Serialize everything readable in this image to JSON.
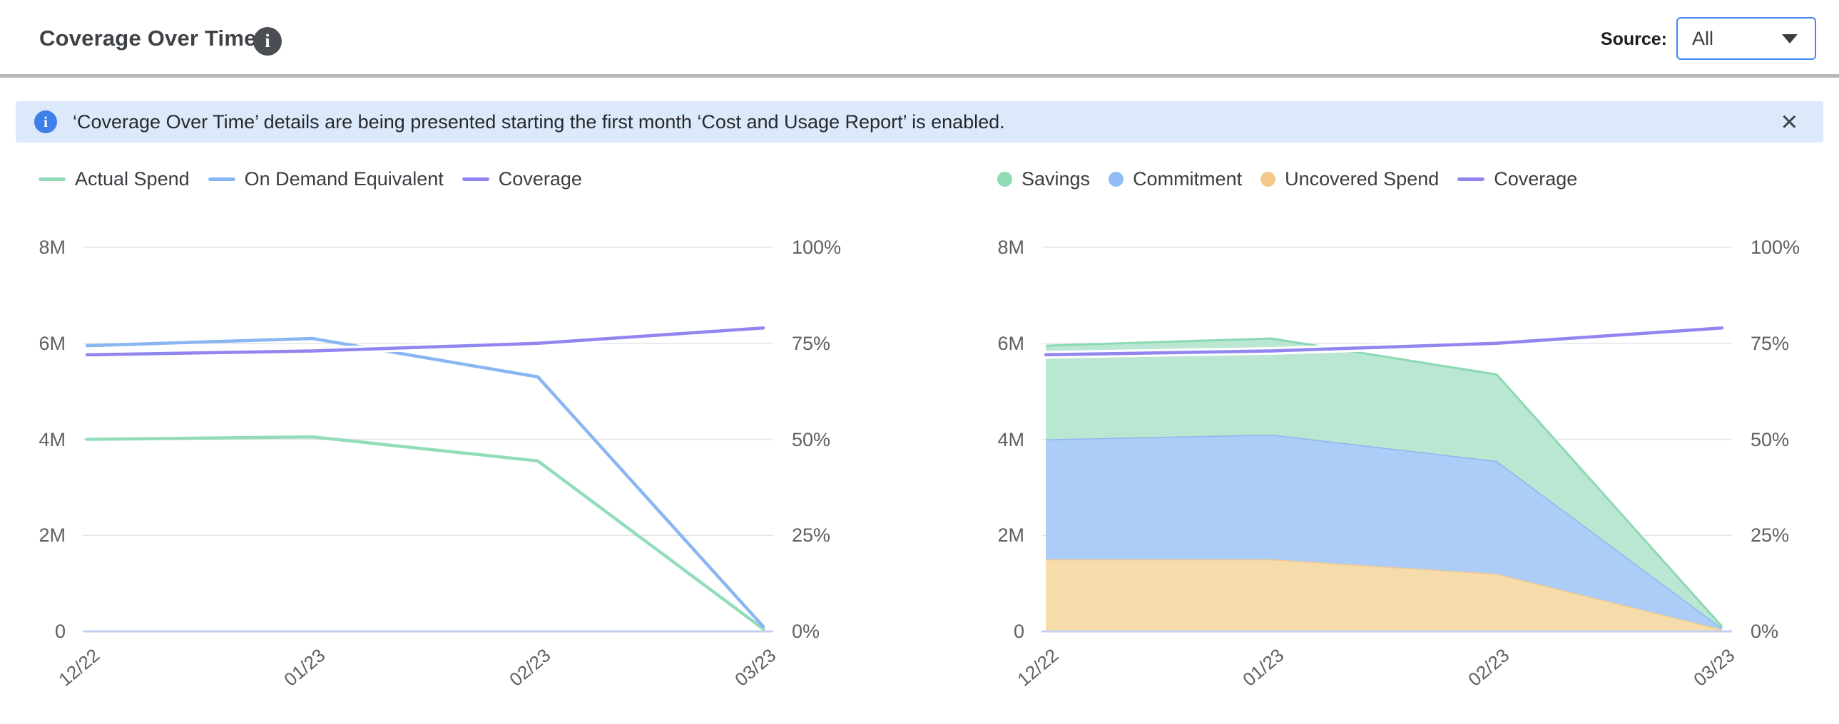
{
  "header": {
    "title": "Coverage Over Time",
    "info_icon": "i",
    "source_label": "Source:",
    "source_value": "All"
  },
  "banner": {
    "info_icon": "i",
    "text": "‘Coverage Over Time’ details are being presented starting the first month ‘Cost and Usage Report’ is enabled.",
    "close_icon": "×"
  },
  "colors": {
    "accent_blue": "#4387f6",
    "banner_bg": "#dce9fb",
    "banner_icon_blue": "#3e7fe9",
    "gridline": "#e5e5e7",
    "axis_line": "#c5cff2",
    "axis_text": "#5d6065",
    "green": "#93dcba",
    "blue": "#89b6f2",
    "purple": "#9186f0",
    "orange": "#f2c987"
  },
  "chart_data": [
    {
      "id": "spend-coverage-line-chart",
      "type": "line",
      "categories": [
        "12/22",
        "01/23",
        "02/23",
        "03/23"
      ],
      "left_axis": {
        "range": [
          0,
          8000000
        ],
        "ticks": [
          {
            "value": 0,
            "label": "0"
          },
          {
            "value": 2000000,
            "label": "2M"
          },
          {
            "value": 4000000,
            "label": "4M"
          },
          {
            "value": 6000000,
            "label": "6M"
          },
          {
            "value": 8000000,
            "label": "8M"
          }
        ]
      },
      "right_axis": {
        "range": [
          0,
          100
        ],
        "ticks": [
          {
            "value": 0,
            "label": "0%"
          },
          {
            "value": 25,
            "label": "25%"
          },
          {
            "value": 50,
            "label": "50%"
          },
          {
            "value": 75,
            "label": "75%"
          },
          {
            "value": 100,
            "label": "100%"
          }
        ]
      },
      "series": [
        {
          "name": "Actual Spend",
          "axis": "left",
          "color": "#93dcba",
          "values": [
            4000000,
            4050000,
            3550000,
            50000
          ]
        },
        {
          "name": "On Demand Equivalent",
          "axis": "left",
          "color": "#89b6f2",
          "values": [
            5950000,
            6100000,
            5300000,
            100000
          ]
        },
        {
          "name": "Coverage",
          "axis": "right",
          "color": "#9186f0",
          "halo": true,
          "values": [
            72,
            73,
            75,
            79
          ]
        }
      ],
      "legend": [
        {
          "label": "Actual Spend",
          "swatch": "line",
          "color": "#93dcba"
        },
        {
          "label": "On Demand Equivalent",
          "swatch": "line",
          "color": "#89b6f2"
        },
        {
          "label": "Coverage",
          "swatch": "line",
          "color": "#9186f0"
        }
      ],
      "grid": true,
      "legend_position": "top-left"
    },
    {
      "id": "savings-breakdown-area-chart",
      "type": "area",
      "categories": [
        "12/22",
        "01/23",
        "02/23",
        "03/23"
      ],
      "left_axis": {
        "range": [
          0,
          8000000
        ],
        "ticks": [
          {
            "value": 0,
            "label": "0"
          },
          {
            "value": 2000000,
            "label": "2M"
          },
          {
            "value": 4000000,
            "label": "4M"
          },
          {
            "value": 6000000,
            "label": "6M"
          },
          {
            "value": 8000000,
            "label": "8M"
          }
        ]
      },
      "right_axis": {
        "range": [
          0,
          100
        ],
        "ticks": [
          {
            "value": 0,
            "label": "0%"
          },
          {
            "value": 25,
            "label": "25%"
          },
          {
            "value": 50,
            "label": "50%"
          },
          {
            "value": 75,
            "label": "75%"
          },
          {
            "value": 100,
            "label": "100%"
          }
        ]
      },
      "series": [
        {
          "name": "Uncovered Spend",
          "stack": true,
          "axis": "left",
          "color": "#f6dcab",
          "line_color": "#f1ca8e",
          "values": [
            1500000,
            1500000,
            1200000,
            40000
          ]
        },
        {
          "name": "Commitment",
          "stack": true,
          "axis": "left",
          "color": "#accdf8",
          "line_color": "#8ab7f0",
          "values": [
            2500000,
            2600000,
            2350000,
            30000
          ]
        },
        {
          "name": "Savings",
          "stack": true,
          "axis": "left",
          "color": "#b9e7d1",
          "line_color": "#8bd9b4",
          "values": [
            1950000,
            2000000,
            1800000,
            30000
          ]
        },
        {
          "name": "Coverage",
          "axis": "right",
          "color": "#9186f0",
          "halo": true,
          "values": [
            72,
            73,
            75,
            79
          ]
        }
      ],
      "legend": [
        {
          "label": "Savings",
          "swatch": "dot",
          "color": "#8fdcb4"
        },
        {
          "label": "Commitment",
          "swatch": "dot",
          "color": "#90bdf4"
        },
        {
          "label": "Uncovered Spend",
          "swatch": "dot",
          "color": "#f2c987"
        },
        {
          "label": "Coverage",
          "swatch": "line",
          "color": "#9186f0"
        }
      ],
      "grid": true,
      "legend_position": "top-left"
    }
  ]
}
